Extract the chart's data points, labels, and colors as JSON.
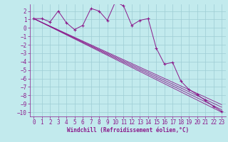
{
  "xlabel": "Windchill (Refroidissement éolien,°C)",
  "bg_color": "#c2eaed",
  "grid_color": "#9ecdd4",
  "line_color": "#8b1a8b",
  "xlim": [
    -0.5,
    23.5
  ],
  "ylim": [
    -10.5,
    2.8
  ],
  "yticks": [
    2,
    1,
    0,
    -1,
    -2,
    -3,
    -4,
    -5,
    -6,
    -7,
    -8,
    -9,
    -10
  ],
  "xticks": [
    0,
    1,
    2,
    3,
    4,
    5,
    6,
    7,
    8,
    9,
    10,
    11,
    12,
    13,
    14,
    15,
    16,
    17,
    18,
    19,
    20,
    21,
    22,
    23
  ],
  "series_jagged_x": [
    0,
    1,
    2,
    3,
    4,
    5,
    6,
    7,
    8,
    9,
    10,
    11,
    12,
    13,
    14,
    15,
    16,
    17,
    18,
    19,
    20,
    21,
    22,
    23
  ],
  "series_jagged_y": [
    1.1,
    1.1,
    0.7,
    2.0,
    0.6,
    -0.2,
    0.3,
    2.3,
    2.0,
    0.9,
    3.1,
    2.6,
    0.3,
    0.9,
    1.1,
    -2.4,
    -4.3,
    -4.1,
    -6.3,
    -7.3,
    -7.9,
    -8.6,
    -9.3,
    -9.9
  ],
  "smooth_lines": [
    {
      "x": [
        0,
        23
      ],
      "y": [
        1.1,
        -10.0
      ]
    },
    {
      "x": [
        0,
        23
      ],
      "y": [
        1.1,
        -9.7
      ]
    },
    {
      "x": [
        0,
        23
      ],
      "y": [
        1.1,
        -9.4
      ]
    },
    {
      "x": [
        0,
        23
      ],
      "y": [
        1.1,
        -9.1
      ]
    }
  ],
  "tick_fontsize": 5.5,
  "xlabel_fontsize": 5.5
}
